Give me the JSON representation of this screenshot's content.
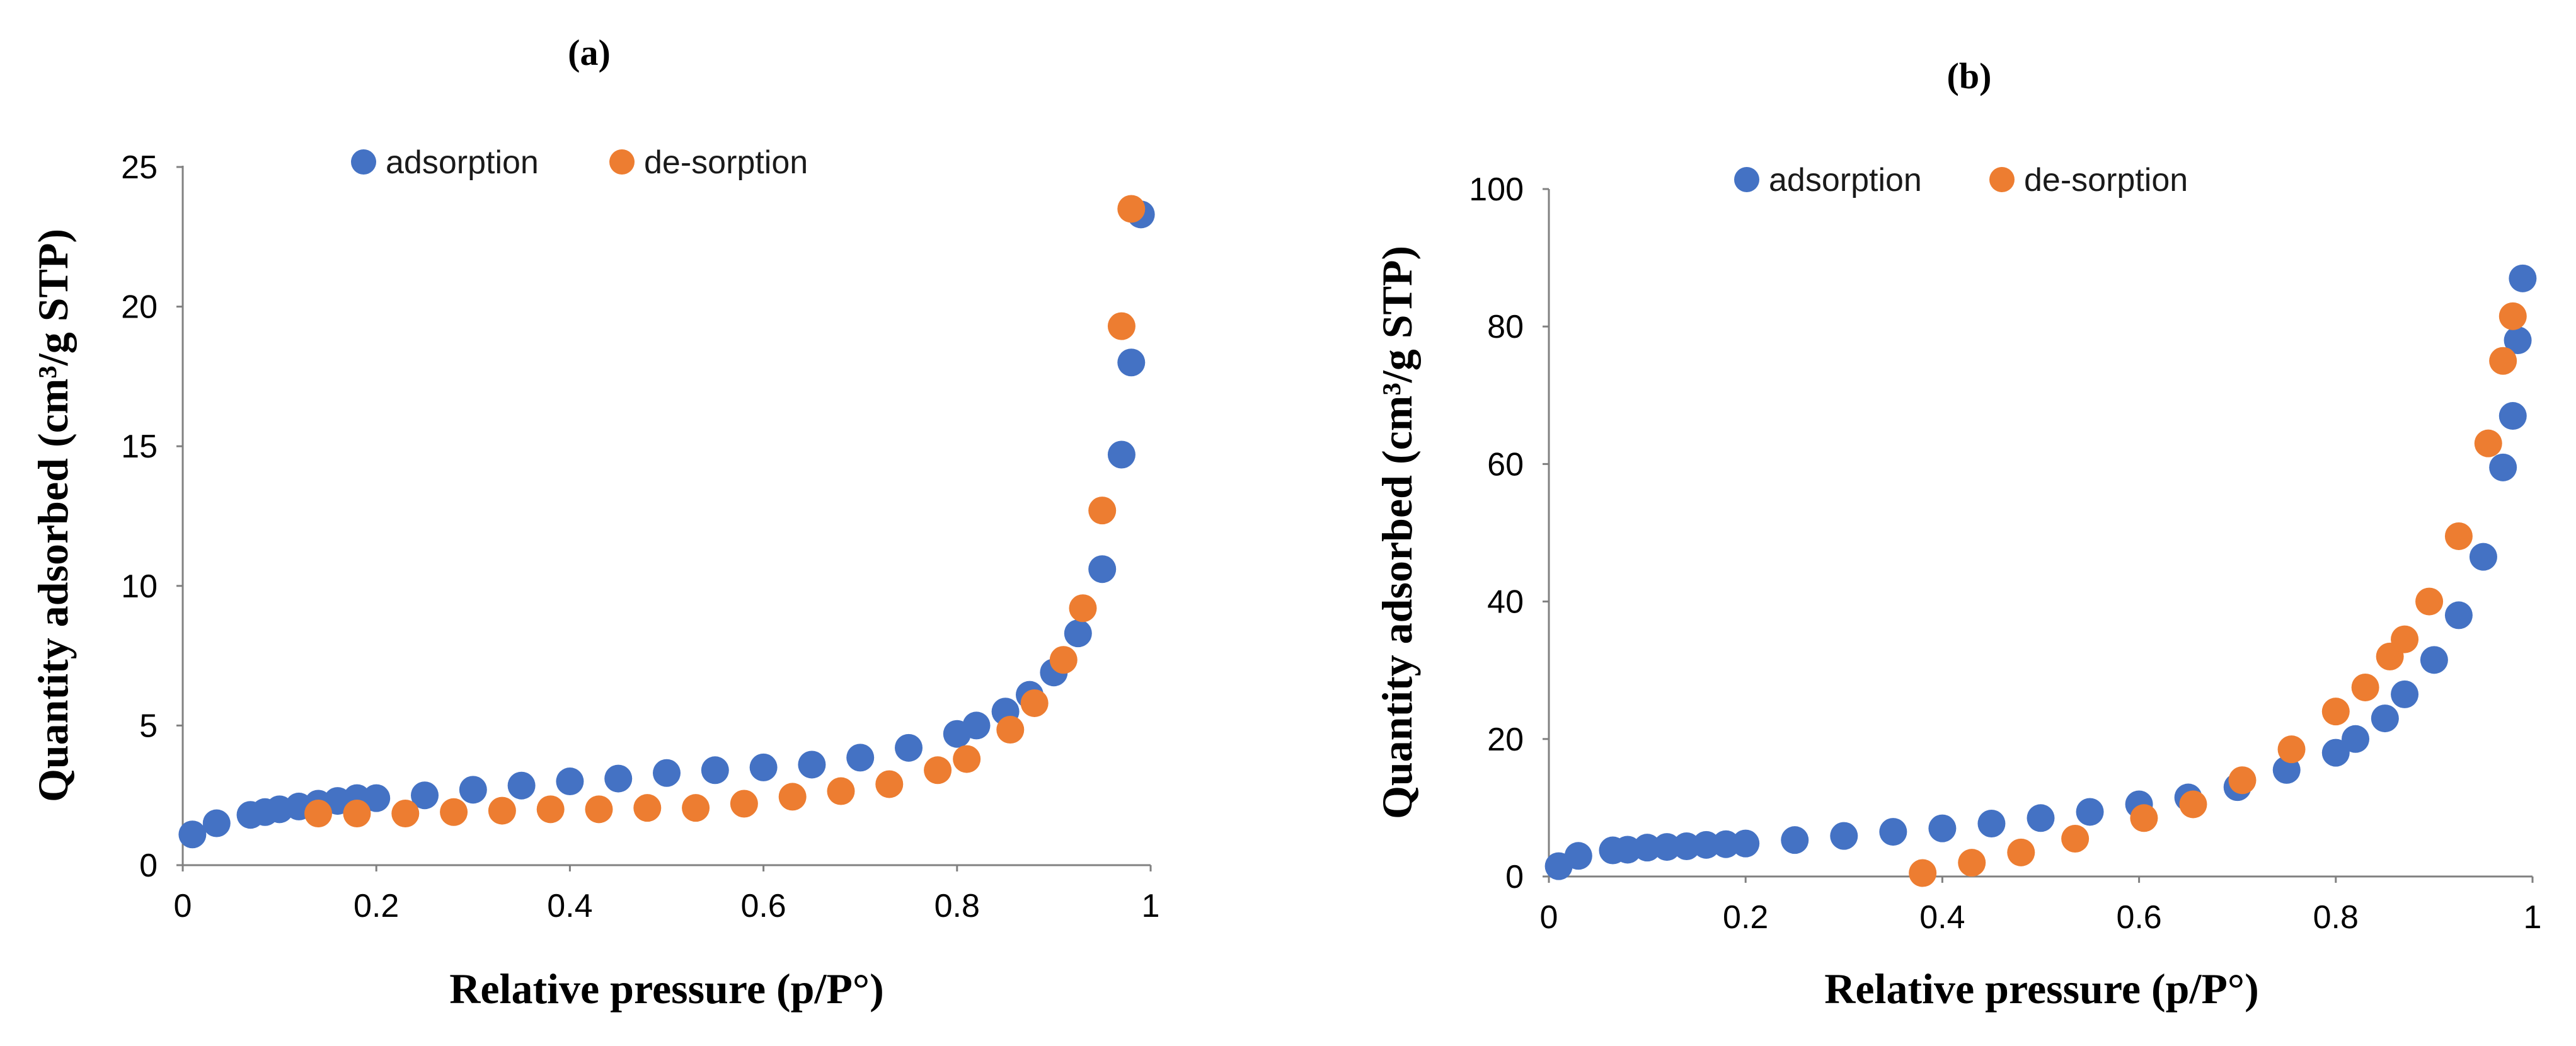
{
  "chart_data": [
    {
      "type": "scatter",
      "panel_label": "(a)",
      "xlabel": "Relative pressure (p/P°)",
      "ylabel": "Quantity adsorbed (cm³/g STP)",
      "xlim": [
        0,
        1
      ],
      "ylim": [
        0,
        25
      ],
      "xticks": [
        0,
        0.2,
        0.4,
        0.6,
        0.8,
        1
      ],
      "xtick_labels": [
        "0",
        "0.2",
        "0.4",
        "0.6",
        "0.8",
        "1"
      ],
      "yticks": [
        0,
        5,
        10,
        15,
        20,
        25
      ],
      "ytick_labels": [
        "0",
        "5",
        "10",
        "15",
        "20",
        "25"
      ],
      "grid": false,
      "legend_position": "top-center",
      "series": [
        {
          "name": "adsorption",
          "color": "#4472C4",
          "x": [
            0.01,
            0.035,
            0.07,
            0.085,
            0.1,
            0.12,
            0.14,
            0.16,
            0.18,
            0.2,
            0.25,
            0.3,
            0.35,
            0.4,
            0.45,
            0.5,
            0.55,
            0.6,
            0.65,
            0.7,
            0.75,
            0.8,
            0.82,
            0.85,
            0.875,
            0.9,
            0.925,
            0.95,
            0.97,
            0.98,
            0.99
          ],
          "y": [
            1.1,
            1.5,
            1.8,
            1.9,
            2.0,
            2.1,
            2.2,
            2.3,
            2.4,
            2.4,
            2.5,
            2.7,
            2.85,
            3.0,
            3.1,
            3.3,
            3.4,
            3.5,
            3.6,
            3.85,
            4.2,
            4.7,
            5.0,
            5.5,
            6.1,
            6.9,
            8.3,
            10.6,
            14.7,
            18.0,
            23.3
          ]
        },
        {
          "name": "de-sorption",
          "color": "#ED7D31",
          "x": [
            0.14,
            0.18,
            0.23,
            0.28,
            0.33,
            0.38,
            0.43,
            0.48,
            0.53,
            0.58,
            0.63,
            0.68,
            0.73,
            0.78,
            0.81,
            0.855,
            0.88,
            0.91,
            0.93,
            0.95,
            0.97,
            0.98
          ],
          "y": [
            1.85,
            1.85,
            1.85,
            1.9,
            1.95,
            2.0,
            2.0,
            2.05,
            2.05,
            2.2,
            2.45,
            2.65,
            2.9,
            3.4,
            3.8,
            4.85,
            5.8,
            7.35,
            9.2,
            12.7,
            19.3,
            23.5
          ]
        }
      ]
    },
    {
      "type": "scatter",
      "panel_label": "(b)",
      "xlabel": "Relative pressure (p/P°)",
      "ylabel": "Quantity adsorbed (cm³/g STP)",
      "xlim": [
        0,
        1
      ],
      "ylim": [
        0,
        100
      ],
      "xticks": [
        0,
        0.2,
        0.4,
        0.6,
        0.8,
        1
      ],
      "xtick_labels": [
        "0",
        "0.2",
        "0.4",
        "0.6",
        "0.8",
        "1"
      ],
      "yticks": [
        0,
        20,
        40,
        60,
        80,
        100
      ],
      "ytick_labels": [
        "0",
        "20",
        "40",
        "60",
        "80",
        "100"
      ],
      "grid": false,
      "legend_position": "top-center",
      "series": [
        {
          "name": "adsorption",
          "color": "#4472C4",
          "x": [
            0.01,
            0.03,
            0.065,
            0.08,
            0.1,
            0.12,
            0.14,
            0.16,
            0.18,
            0.2,
            0.25,
            0.3,
            0.35,
            0.4,
            0.45,
            0.5,
            0.55,
            0.6,
            0.65,
            0.7,
            0.75,
            0.8,
            0.82,
            0.85,
            0.87,
            0.9,
            0.925,
            0.95,
            0.97,
            0.98,
            0.985,
            0.99
          ],
          "y": [
            1.5,
            3.0,
            3.8,
            3.9,
            4.2,
            4.3,
            4.4,
            4.6,
            4.7,
            4.8,
            5.3,
            5.9,
            6.5,
            7.0,
            7.7,
            8.5,
            9.4,
            10.5,
            11.5,
            13.0,
            15.5,
            18.0,
            20.0,
            23.0,
            26.5,
            31.5,
            38.0,
            46.5,
            59.5,
            67.0,
            78.0,
            87.0
          ]
        },
        {
          "name": "de-sorption",
          "color": "#ED7D31",
          "x": [
            0.38,
            0.43,
            0.48,
            0.535,
            0.605,
            0.655,
            0.705,
            0.755,
            0.8,
            0.83,
            0.855,
            0.87,
            0.895,
            0.925,
            0.955,
            0.97,
            0.98
          ],
          "y": [
            0.5,
            2.0,
            3.5,
            5.5,
            8.5,
            10.5,
            14.0,
            18.5,
            24.0,
            27.5,
            32.0,
            34.5,
            40.0,
            49.5,
            63.0,
            75.0,
            81.5
          ]
        }
      ]
    }
  ]
}
